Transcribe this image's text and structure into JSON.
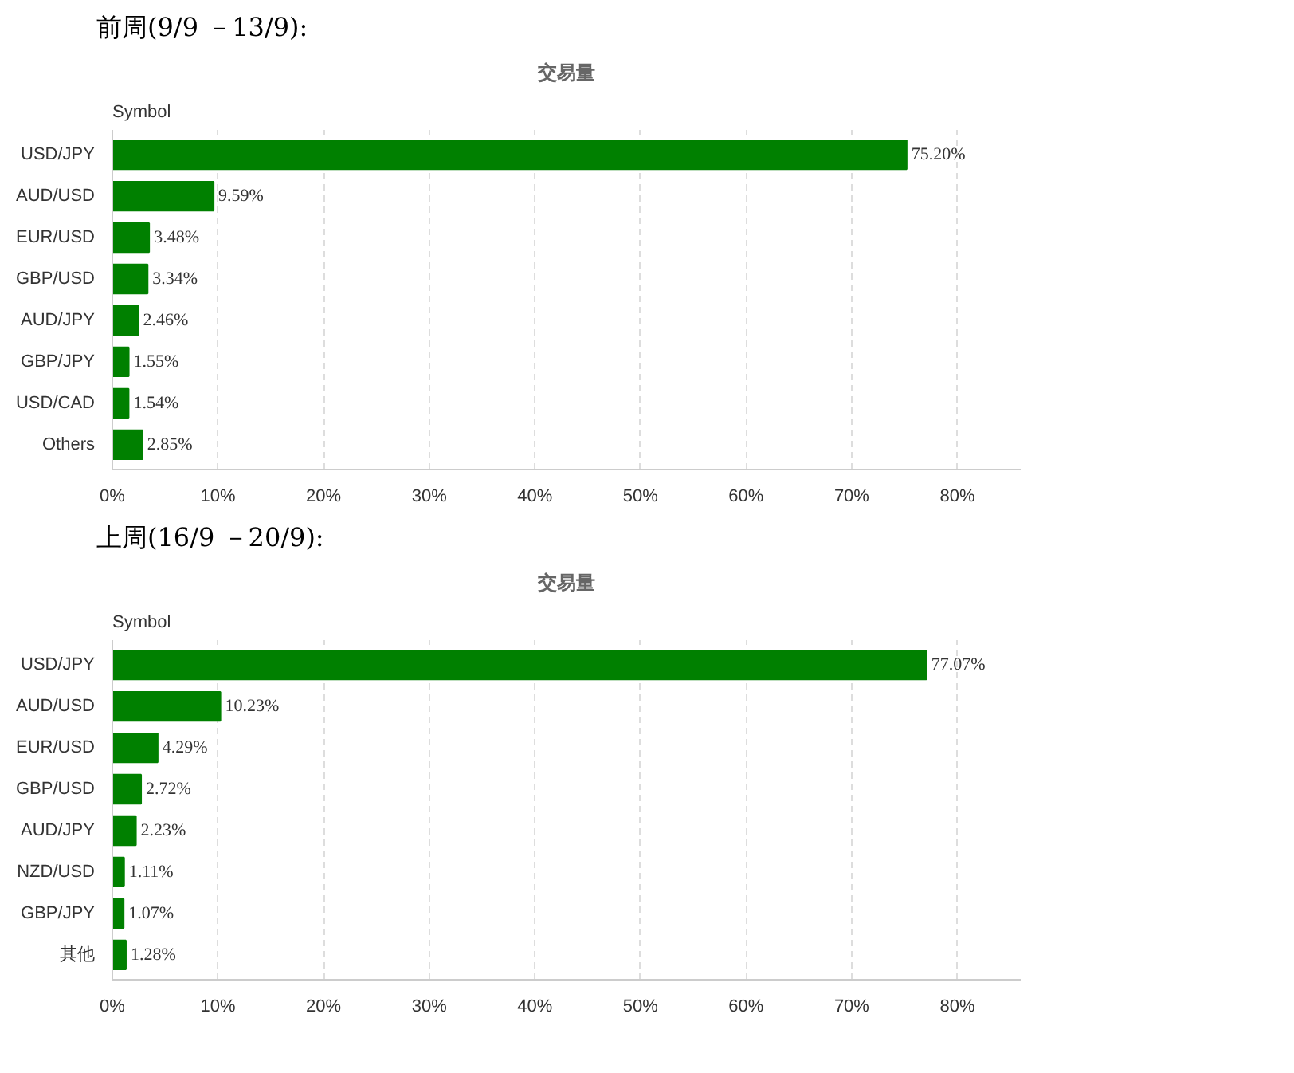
{
  "chart_data": [
    {
      "type": "bar",
      "orientation": "horizontal",
      "title": "前周(9/9 －13/9):",
      "subtitle": "交易量",
      "ylabel": "Symbol",
      "categories": [
        "USD/JPY",
        "AUD/USD",
        "EUR/USD",
        "GBP/USD",
        "AUD/JPY",
        "GBP/JPY",
        "USD/CAD",
        "Others"
      ],
      "values": [
        75.2,
        9.59,
        3.48,
        3.34,
        2.46,
        1.55,
        1.54,
        2.85
      ],
      "value_labels": [
        "75.20%",
        "9.59%",
        "3.48%",
        "3.34%",
        "2.46%",
        "1.55%",
        "1.54%",
        "2.85%"
      ],
      "color": "#008000",
      "xlim": [
        0,
        86
      ],
      "xticks": [
        {
          "value": 0,
          "label": "0%"
        },
        {
          "value": 10,
          "label": "10%"
        },
        {
          "value": 20,
          "label": "20%"
        },
        {
          "value": 30,
          "label": "30%"
        },
        {
          "value": 40,
          "label": "40%"
        },
        {
          "value": 50,
          "label": "50%"
        },
        {
          "value": 60,
          "label": "60%"
        },
        {
          "value": 70,
          "label": "70%"
        },
        {
          "value": 80,
          "label": "80%"
        }
      ],
      "grid": "x"
    },
    {
      "type": "bar",
      "orientation": "horizontal",
      "title": "上周(16/9 －20/9):",
      "subtitle": "交易量",
      "ylabel": "Symbol",
      "categories": [
        "USD/JPY",
        "AUD/USD",
        "EUR/USD",
        "GBP/USD",
        "AUD/JPY",
        "NZD/USD",
        "GBP/JPY",
        "其他"
      ],
      "values": [
        77.07,
        10.23,
        4.29,
        2.72,
        2.23,
        1.11,
        1.07,
        1.28
      ],
      "value_labels": [
        "77.07%",
        "10.23%",
        "4.29%",
        "2.72%",
        "2.23%",
        "1.11%",
        "1.07%",
        "1.28%"
      ],
      "color": "#008000",
      "xlim": [
        0,
        86
      ],
      "xticks": [
        {
          "value": 0,
          "label": "0%"
        },
        {
          "value": 10,
          "label": "10%"
        },
        {
          "value": 20,
          "label": "20%"
        },
        {
          "value": 30,
          "label": "30%"
        },
        {
          "value": 40,
          "label": "40%"
        },
        {
          "value": 50,
          "label": "50%"
        },
        {
          "value": 60,
          "label": "60%"
        },
        {
          "value": 70,
          "label": "70%"
        },
        {
          "value": 80,
          "label": "80%"
        }
      ],
      "grid": "x"
    }
  ]
}
